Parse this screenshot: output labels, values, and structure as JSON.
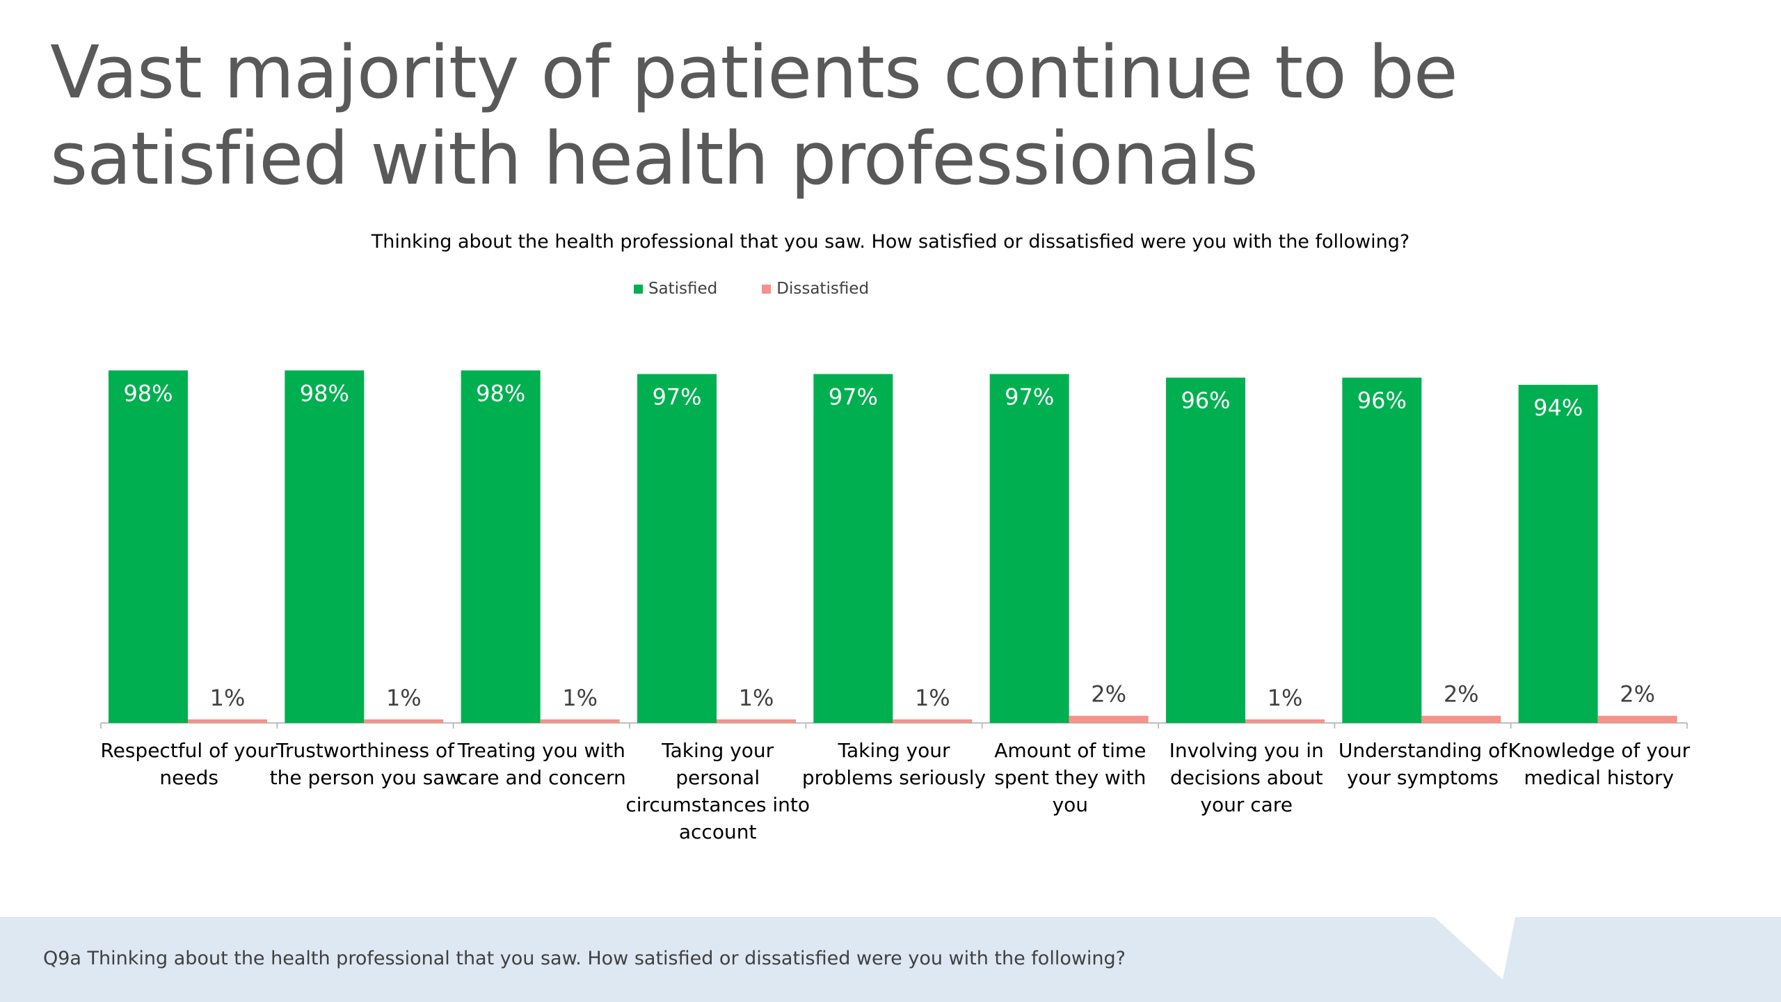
{
  "title": "Vast majority of patients continue to be satisfied with health professionals",
  "footer": {
    "note": "Q9a Thinking about the health professional that you saw. How satisfied or dissatisfied were you with the following?"
  },
  "colors": {
    "satisfied": "#00b050",
    "dissatisfied": "#f4928c",
    "title": "#595959",
    "footer_band": "#dde8f3"
  },
  "chart_data": {
    "type": "bar",
    "title": "Thinking about the health professional that you saw. How satisfied or dissatisfied were you with the following?",
    "xlabel": "",
    "ylabel": "",
    "ylim": [
      0,
      100
    ],
    "grid": false,
    "legend": "top-center",
    "categories": [
      "Respectful of your needs",
      "Trustworthiness of the person you saw",
      "Treating you with care and concern",
      "Taking your personal circumstances into account",
      "Taking your problems seriously",
      "Amount of time spent they with you",
      "Involving you in decisions about your care",
      "Understanding of your symptoms",
      "Knowledge of your medical history"
    ],
    "category_lines": [
      [
        "Respectful of your",
        "needs"
      ],
      [
        "Trustworthiness of",
        "the person you saw"
      ],
      [
        "Treating you with",
        "care and concern"
      ],
      [
        "Taking your",
        "personal",
        "circumstances into",
        "account"
      ],
      [
        "Taking your",
        "problems seriously"
      ],
      [
        "Amount of time",
        "spent they with",
        "you"
      ],
      [
        "Involving you in",
        "decisions about",
        "your care"
      ],
      [
        "Understanding of",
        "your symptoms"
      ],
      [
        "Knowledge of your",
        "medical history"
      ]
    ],
    "series": [
      {
        "name": "Satisfied",
        "values": [
          98,
          98,
          98,
          97,
          97,
          97,
          96,
          96,
          94
        ],
        "labels": [
          "98%",
          "98%",
          "98%",
          "97%",
          "97%",
          "97%",
          "96%",
          "96%",
          "94%"
        ]
      },
      {
        "name": "Dissatisfied",
        "values": [
          1,
          1,
          1,
          1,
          1,
          2,
          1,
          2,
          2
        ],
        "labels": [
          "1%",
          "1%",
          "1%",
          "1%",
          "1%",
          "2%",
          "1%",
          "2%",
          "2%"
        ]
      }
    ]
  }
}
